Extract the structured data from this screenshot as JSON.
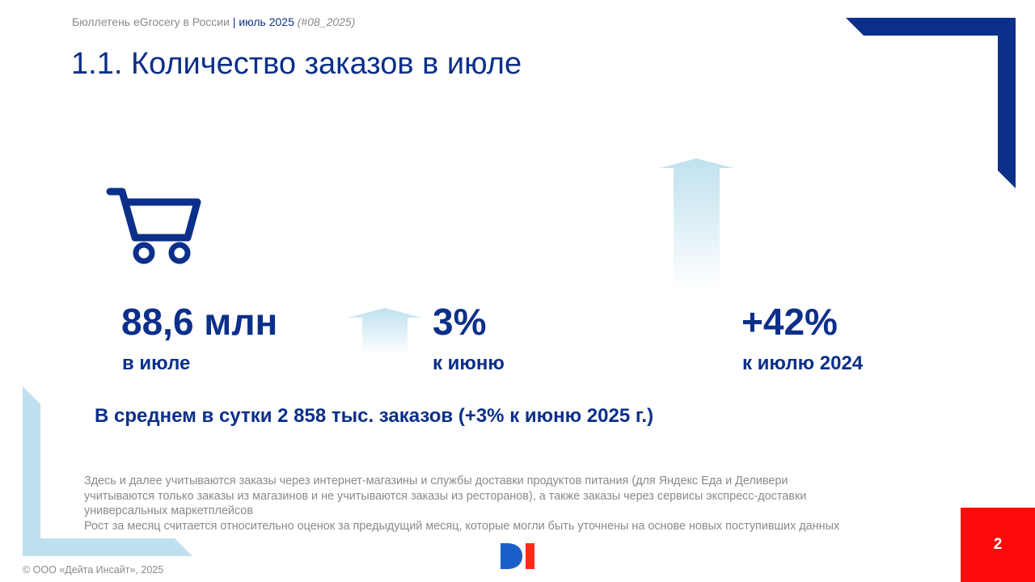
{
  "header": {
    "bulletin": "Бюллетень eGrocery в России",
    "separator": "|",
    "period": "июль 2025",
    "code": "(#08_2025)"
  },
  "title": "1.1. Количество заказов в июле",
  "stats": [
    {
      "value": "88,6 млн",
      "label": "в июле"
    },
    {
      "value": "3%",
      "label": "к июню",
      "trend": "up"
    },
    {
      "value": "+42%",
      "label": "к июлю 2024",
      "trend": "up"
    }
  ],
  "summary": "В среднем в сутки 2 858 тыс. заказов (+3% к июню 2025 г.)",
  "footnote": [
    "Здесь и далее учитываются заказы через интернет-магазины и службы доставки продуктов питания (для Яндекс Еда и Деливери",
    "учитываются только заказы из магазинов и не учитываются заказы из ресторанов), а также заказы через сервисы экспресс-доставки",
    "универсальных маркетплейсов",
    "Рост за месяц считается относительно оценок за предыдущий месяц, которые могли быть уточнены на основе новых поступивших данных"
  ],
  "copyright": "© ООО «Дейта Инсайт», 2025",
  "page_number": "2",
  "icons": [
    "shopping-cart-icon",
    "up-arrow-icon",
    "company-logo"
  ],
  "colors": {
    "primary": "#0b2f8a",
    "muted": "#8a8a8a",
    "light_blue": "#bfe1ef",
    "badge_red": "#ff0a0a"
  }
}
